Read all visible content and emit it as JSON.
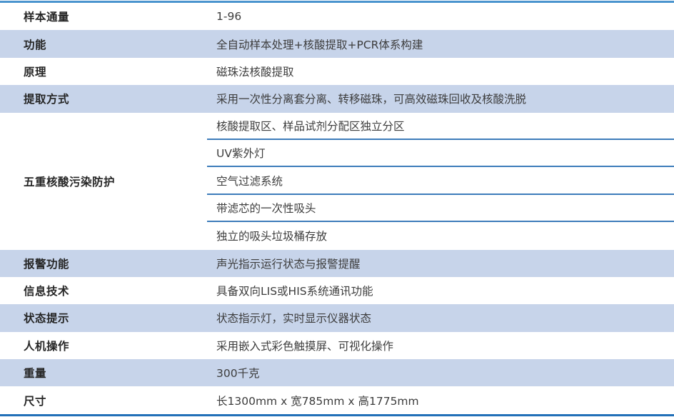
{
  "table": {
    "rows": [
      {
        "label": "样本通量",
        "value": "1-96"
      },
      {
        "label": "功能",
        "value": "全自动样本处理+核酸提取+PCR体系构建"
      },
      {
        "label": "原理",
        "value": "磁珠法核酸提取"
      },
      {
        "label": "提取方式",
        "value": "采用一次性分离套分离、转移磁珠，可高效磁珠回收及核酸洗脱"
      },
      {
        "label": "五重核酸污染防护",
        "values": [
          "核酸提取区、样品试剂分配区独立分区",
          "UV紫外灯",
          "空气过滤系统",
          "带滤芯的一次性吸头",
          "独立的吸头垃圾桶存放"
        ]
      },
      {
        "label": "报警功能",
        "value": "声光指示运行状态与报警提醒"
      },
      {
        "label": "信息技术",
        "value": "具备双向LIS或HIS系统通讯功能"
      },
      {
        "label": "状态提示",
        "value": "状态指示灯，实时显示仪器状态"
      },
      {
        "label": "人机操作",
        "value": "采用嵌入式彩色触摸屏、可视化操作"
      },
      {
        "label": "重量",
        "value": "300千克"
      },
      {
        "label": "尺寸",
        "value": "长1300mm x 宽785mm x 高1775mm"
      }
    ],
    "colors": {
      "row_alt_fill": "#c7d4ea",
      "top_border": "#4a94ce",
      "bottom_border": "#2270b8",
      "separator_line": "#3d7cba",
      "label_text": "#262626",
      "value_text": "#3d3d3d"
    }
  }
}
